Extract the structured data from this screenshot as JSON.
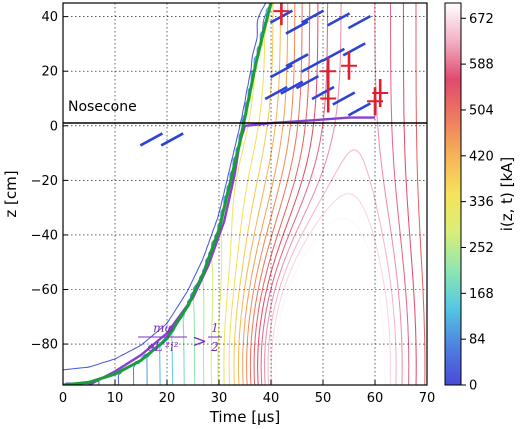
{
  "chart_data": {
    "type": "contour",
    "xlabel": "Time [μs]",
    "ylabel": "z [cm]",
    "xlim": [
      0,
      70
    ],
    "ylim": [
      -95,
      45
    ],
    "x_ticks": [
      "0",
      "10",
      "20",
      "30",
      "40",
      "50",
      "60",
      "70"
    ],
    "y_ticks": [
      "40",
      "20",
      "0",
      "−20",
      "−40",
      "−60",
      "−80"
    ],
    "grid": true,
    "colorbar": {
      "label": "i(z, t) [kA]",
      "min": 0,
      "max": 700,
      "ticks": [
        "672",
        "588",
        "504",
        "420",
        "336",
        "252",
        "168",
        "84",
        "0"
      ],
      "colors": [
        "#4a4ad8",
        "#4f7fe0",
        "#55c7e3",
        "#8ee6b0",
        "#d9ee7a",
        "#f5e35a",
        "#f6b358",
        "#ee7a60",
        "#e04a6e",
        "#f2b0c4",
        "#ffffff"
      ]
    },
    "annotations": {
      "region": "Nosecone",
      "condition": {
        "numerator": "mφ",
        "denominator": "eL′²i²",
        "relation": ">",
        "rhs_numerator": "1",
        "rhs_denominator": "2"
      }
    },
    "boundary_curve": {
      "color": "#1a9e3a",
      "points": [
        [
          0,
          -95
        ],
        [
          5,
          -94
        ],
        [
          10,
          -91
        ],
        [
          15,
          -86
        ],
        [
          20,
          -78
        ],
        [
          24,
          -66
        ],
        [
          27,
          -54
        ],
        [
          30,
          -38
        ],
        [
          32,
          -22
        ],
        [
          34,
          -6
        ],
        [
          35.5,
          8
        ],
        [
          37,
          22
        ],
        [
          38.5,
          34
        ],
        [
          40,
          45
        ]
      ]
    },
    "condition_curve": {
      "color": "#8a3fd0",
      "points": [
        [
          5,
          -95
        ],
        [
          10,
          -90
        ],
        [
          15,
          -84
        ],
        [
          20,
          -76
        ],
        [
          25,
          -63
        ],
        [
          28,
          -51
        ],
        [
          31,
          -35
        ],
        [
          33,
          -18
        ],
        [
          34,
          -6
        ],
        [
          35,
          0
        ],
        [
          40,
          1
        ],
        [
          48,
          2
        ],
        [
          55,
          3
        ],
        [
          60,
          3
        ]
      ]
    },
    "vector_markers": {
      "red": [
        [
          42,
          42
        ],
        [
          51,
          20
        ],
        [
          51,
          10
        ],
        [
          55,
          22
        ],
        [
          60,
          9
        ],
        [
          61,
          12
        ]
      ],
      "blue": [
        [
          42,
          40
        ],
        [
          45,
          36
        ],
        [
          48,
          40
        ],
        [
          53,
          39
        ],
        [
          57,
          38
        ],
        [
          42,
          20
        ],
        [
          45,
          24
        ],
        [
          48,
          22
        ],
        [
          52,
          26
        ],
        [
          56,
          28
        ],
        [
          41,
          12
        ],
        [
          44,
          14
        ],
        [
          47,
          16
        ],
        [
          50,
          12
        ],
        [
          54,
          10
        ],
        [
          57,
          6
        ],
        [
          17,
          -5
        ],
        [
          21,
          -5
        ]
      ]
    }
  }
}
